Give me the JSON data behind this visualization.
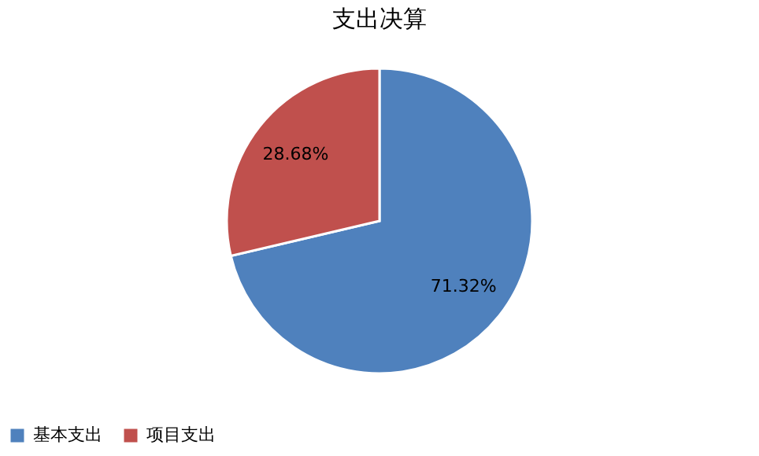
{
  "chart_data": {
    "type": "pie",
    "title": "支出决算",
    "categories": [
      "基本支出",
      "项目支出"
    ],
    "values": [
      71.32,
      28.68
    ],
    "colors": [
      "#4f81bd",
      "#c0504d"
    ],
    "value_labels": [
      "71.32%",
      "28.68%"
    ],
    "legend": "bottom"
  }
}
